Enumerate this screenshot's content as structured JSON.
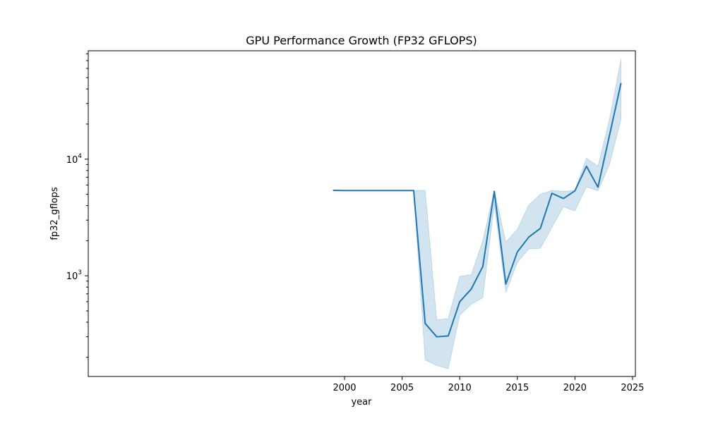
{
  "chart_data": {
    "type": "line",
    "title": "GPU Performance Growth (FP32 GFLOPS)",
    "xlabel": "year",
    "ylabel": "fp32_gflops",
    "y_scale": "log",
    "grid": false,
    "legend": "none",
    "xlim": [
      1977.75,
      2025.25
    ],
    "ylim": [
      137,
      85000
    ],
    "x_ticks": [
      2000,
      2005,
      2010,
      2015,
      2020,
      2025
    ],
    "x_tick_labels": [
      "2000",
      "2005",
      "2010",
      "2015",
      "2020",
      "2025"
    ],
    "y_major_ticks": [
      1000,
      10000
    ],
    "y_major_tick_labels": [
      "10",
      "10"
    ],
    "y_major_tick_exponents": [
      "3",
      "4"
    ],
    "color": "#1f77b4",
    "series": [
      {
        "x": [
          1999,
          2000,
          2001,
          2002,
          2003,
          2004,
          2005,
          2006,
          2007,
          2008,
          2009,
          2010,
          2011,
          2012,
          2013,
          2014,
          2015,
          2016,
          2017,
          2018,
          2019,
          2020,
          2021,
          2022,
          2023,
          2024
        ],
        "y": [
          5400,
          5380,
          5380,
          5380,
          5380,
          5380,
          5380,
          5380,
          390,
          300,
          305,
          600,
          770,
          1200,
          5300,
          850,
          1600,
          2150,
          2550,
          5100,
          4600,
          5350,
          8700,
          5750,
          16000,
          45000
        ],
        "y_lower": [
          5400,
          5380,
          5380,
          5380,
          5380,
          5380,
          5380,
          5380,
          190,
          170,
          160,
          460,
          570,
          650,
          4100,
          720,
          1300,
          1700,
          1720,
          2600,
          3900,
          3600,
          5800,
          5350,
          9000,
          22000
        ],
        "y_upper": [
          5400,
          5380,
          5380,
          5380,
          5380,
          5380,
          5380,
          5400,
          5400,
          420,
          430,
          990,
          1020,
          2000,
          5400,
          1950,
          2500,
          4050,
          5000,
          5400,
          5300,
          5400,
          10200,
          8700,
          22000,
          72000
        ]
      }
    ]
  }
}
